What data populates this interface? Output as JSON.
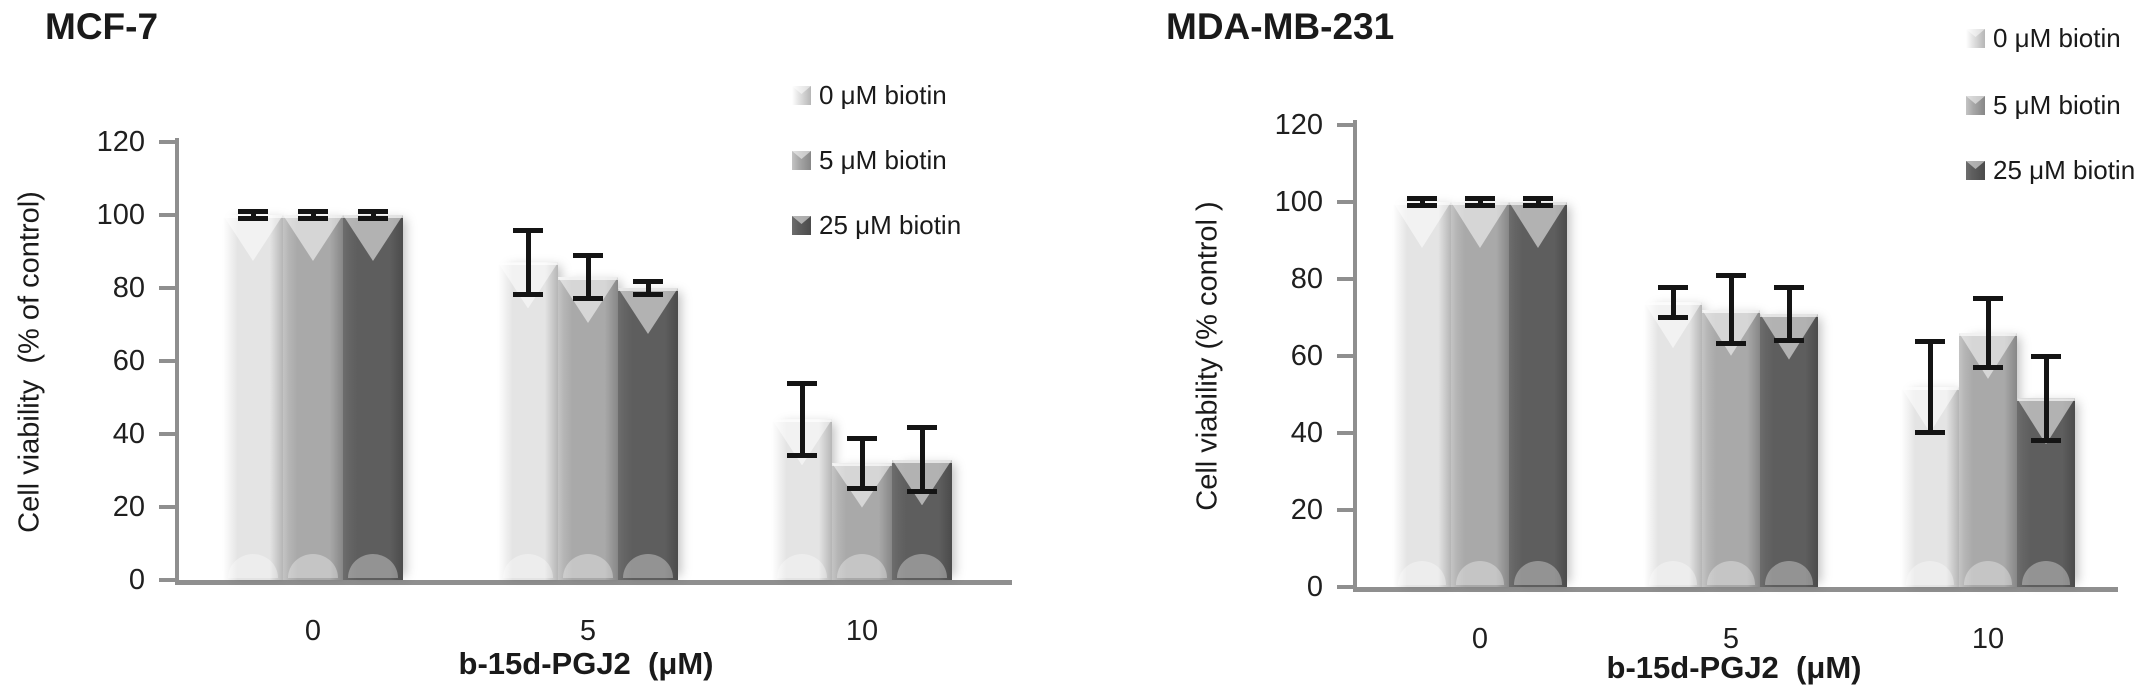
{
  "figure": {
    "background": "#ffffff",
    "text_color": "#1a1a1a",
    "axis_color": "#8f8f8f",
    "error_bar_color": "#141414",
    "series_palette": [
      "#e4e4e4",
      "#a9a9a9",
      "#5e5e5e"
    ]
  },
  "chart_data": [
    {
      "type": "bar",
      "title": "MCF-7",
      "ylabel": "Cell viability  (% of control)",
      "xlabel": "b-15d-PGJ2  (μM)",
      "categories": [
        "0",
        "5",
        "10"
      ],
      "y_ticks": [
        0,
        20,
        40,
        60,
        80,
        100,
        120
      ],
      "ylim": [
        0,
        120
      ],
      "grid": false,
      "legend_position": "top-right",
      "bar_style": "3d-bevel-grayscale",
      "error_bars": true,
      "series": [
        {
          "name": "0 μM biotin",
          "color": "#e4e4e4",
          "values": [
            100,
            87,
            44
          ],
          "errors": [
            1,
            9,
            10
          ]
        },
        {
          "name": "5 μM biotin",
          "color": "#a9a9a9",
          "values": [
            100,
            83,
            32
          ],
          "errors": [
            1,
            6,
            7
          ]
        },
        {
          "name": "25 μM biotin",
          "color": "#5e5e5e",
          "values": [
            100,
            80,
            33
          ],
          "errors": [
            1,
            2,
            9
          ]
        }
      ]
    },
    {
      "type": "bar",
      "title": "MDA-MB-231",
      "ylabel": "Cell viability (% control )",
      "xlabel": "b-15d-PGJ2  (μM)",
      "categories": [
        "0",
        "5",
        "10"
      ],
      "y_ticks": [
        0,
        20,
        40,
        60,
        80,
        100,
        120
      ],
      "ylim": [
        0,
        120
      ],
      "grid": false,
      "legend_position": "top-right",
      "bar_style": "3d-bevel-grayscale",
      "error_bars": true,
      "series": [
        {
          "name": "0 μM biotin",
          "color": "#e4e4e4",
          "values": [
            100,
            74,
            52
          ],
          "errors": [
            1,
            4,
            12
          ]
        },
        {
          "name": "5 μM biotin",
          "color": "#a9a9a9",
          "values": [
            100,
            72,
            66
          ],
          "errors": [
            1,
            9,
            9
          ]
        },
        {
          "name": "25 μM biotin",
          "color": "#5e5e5e",
          "values": [
            100,
            71,
            49
          ],
          "errors": [
            1,
            7,
            11
          ]
        }
      ]
    }
  ]
}
